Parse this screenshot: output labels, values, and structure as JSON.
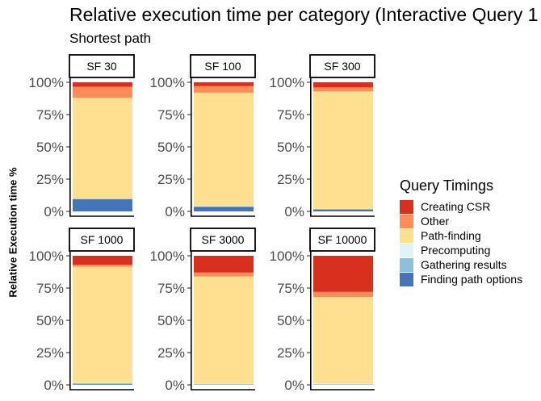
{
  "chart_data": {
    "type": "bar",
    "title": "Relative execution time per category (Interactive Query 1",
    "subtitle": "Shortest path",
    "ylabel": "Relative Execution time %",
    "yticks": [
      "0%",
      "25%",
      "50%",
      "75%",
      "100%"
    ],
    "ylim": [
      0,
      100
    ],
    "stacked": true,
    "legend": {
      "title": "Query Timings",
      "placement": "right"
    },
    "series": [
      {
        "name": "Creating CSR",
        "color": "#d7301f"
      },
      {
        "name": "Other",
        "color": "#fc8d59"
      },
      {
        "name": "Path-finding",
        "color": "#fee090"
      },
      {
        "name": "Precomputing",
        "color": "#e0f3f8"
      },
      {
        "name": "Gathering results",
        "color": "#91bfdb"
      },
      {
        "name": "Finding path options",
        "color": "#4575b4"
      }
    ],
    "panels": [
      {
        "label": "SF 30",
        "values": {
          "Finding path options": 9.5,
          "Gathering results": 0.3,
          "Precomputing": 0.2,
          "Path-finding": 78.0,
          "Other": 8.5,
          "Creating CSR": 3.5
        }
      },
      {
        "label": "SF 100",
        "values": {
          "Finding path options": 3.5,
          "Gathering results": 0.3,
          "Precomputing": 0.2,
          "Path-finding": 88.0,
          "Other": 5.0,
          "Creating CSR": 3.0
        }
      },
      {
        "label": "SF 300",
        "values": {
          "Finding path options": 1.5,
          "Gathering results": 0.3,
          "Precomputing": 0.2,
          "Path-finding": 91.0,
          "Other": 3.0,
          "Creating CSR": 4.0
        }
      },
      {
        "label": "SF 1000",
        "values": {
          "Finding path options": 0.3,
          "Gathering results": 1.0,
          "Precomputing": 0.2,
          "Path-finding": 90.0,
          "Other": 1.5,
          "Creating CSR": 7.0
        }
      },
      {
        "label": "SF 3000",
        "values": {
          "Finding path options": 0.1,
          "Gathering results": 0.5,
          "Precomputing": 0.4,
          "Path-finding": 83.0,
          "Other": 3.0,
          "Creating CSR": 13.0
        }
      },
      {
        "label": "SF 10000",
        "values": {
          "Finding path options": 0.1,
          "Gathering results": 0.4,
          "Precomputing": 0.5,
          "Path-finding": 67.0,
          "Other": 4.0,
          "Creating CSR": 28.0
        }
      }
    ]
  }
}
